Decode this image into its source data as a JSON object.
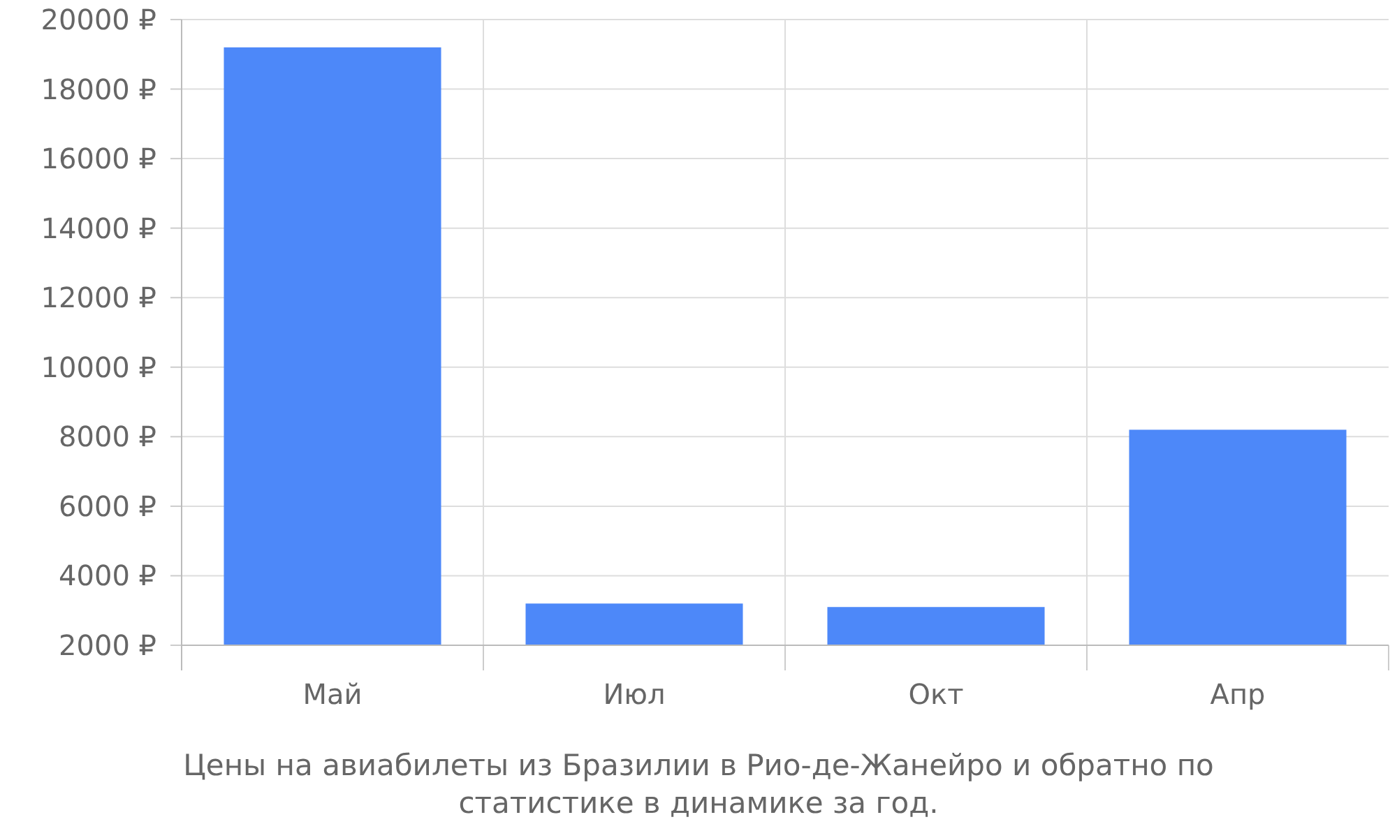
{
  "chart_data": {
    "type": "bar",
    "title": "Цены на авиабилеты из Бразилии в Рио-де-Жанейро и обратно по статистике в динамике за год.",
    "categories": [
      "Май",
      "Июл",
      "Окт",
      "Апр"
    ],
    "values": [
      19200,
      3200,
      3100,
      8200
    ],
    "color": "#4d88f9",
    "ylim": [
      2000,
      20000
    ],
    "yticks": [
      {
        "value": 2000,
        "label": "2000 ₽"
      },
      {
        "value": 4000,
        "label": "4000 ₽"
      },
      {
        "value": 6000,
        "label": "6000 ₽"
      },
      {
        "value": 8000,
        "label": "8000 ₽"
      },
      {
        "value": 10000,
        "label": "10000 ₽"
      },
      {
        "value": 12000,
        "label": "12000 ₽"
      },
      {
        "value": 14000,
        "label": "14000 ₽"
      },
      {
        "value": 16000,
        "label": "16000 ₽"
      },
      {
        "value": 18000,
        "label": "18000 ₽"
      },
      {
        "value": 20000,
        "label": "20000 ₽"
      }
    ],
    "grid": true
  }
}
